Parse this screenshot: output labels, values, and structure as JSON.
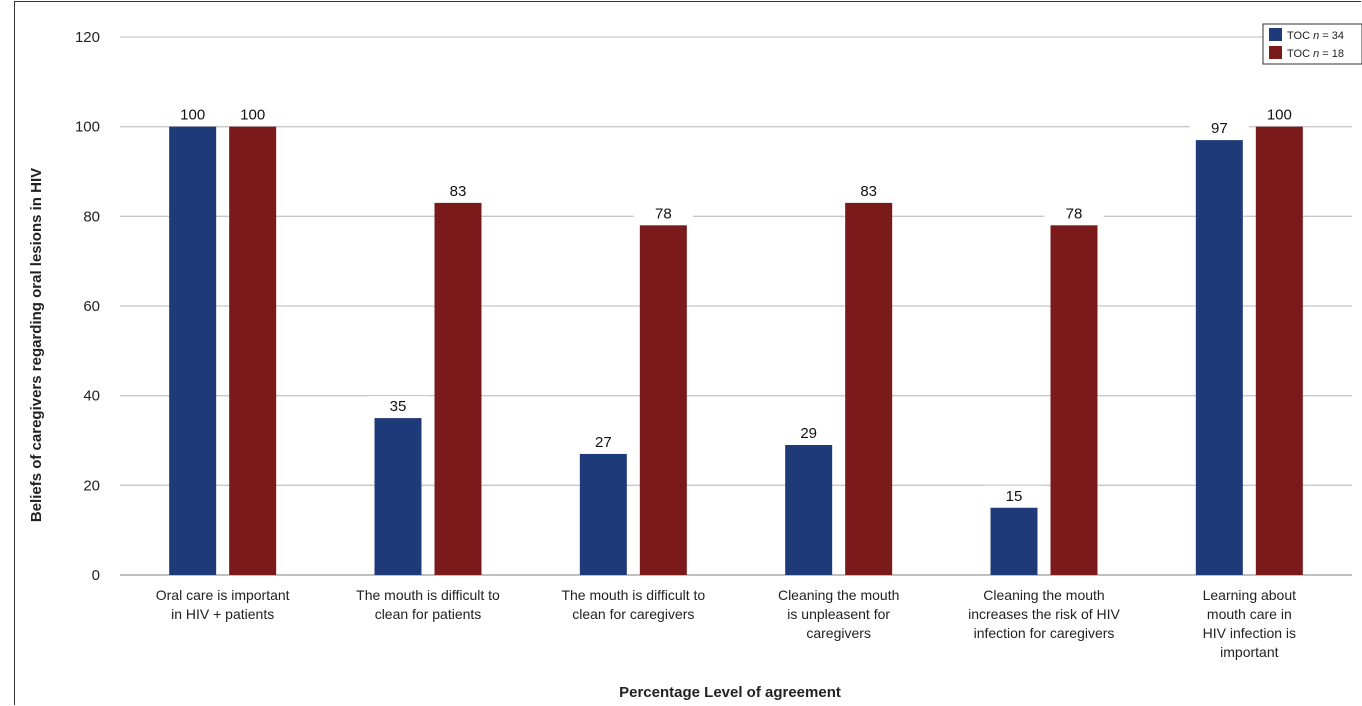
{
  "chart_data": {
    "type": "bar",
    "categories": [
      [
        "Oral care is important",
        "in HIV + patients"
      ],
      [
        "The mouth is difficult to",
        "clean for patients"
      ],
      [
        "The mouth is difficult to",
        "clean for caregivers"
      ],
      [
        "Cleaning the mouth",
        "is unpleasent for",
        "caregivers"
      ],
      [
        "Cleaning the mouth",
        "increases the risk of HIV",
        "infection for caregivers"
      ],
      [
        "Learning about",
        "mouth care in",
        "HIV infection is",
        "important"
      ]
    ],
    "series": [
      {
        "name": "TOC n = 34",
        "name_parts": [
          "TOC ",
          "n",
          " = 34"
        ],
        "color": "#1f3a78",
        "values": [
          100,
          35,
          27,
          29,
          15,
          97
        ]
      },
      {
        "name": "TOC n = 18",
        "name_parts": [
          "TOC ",
          "n",
          " = 18"
        ],
        "color": "#7b1a1a",
        "values": [
          100,
          83,
          78,
          83,
          78,
          100
        ]
      }
    ],
    "xlabel": "Percentage Level of agreement",
    "ylabel": "Beliefs of caregivers regarding oral lesions in HIV",
    "ylim": [
      0,
      120
    ],
    "yticks": [
      0,
      20,
      40,
      60,
      80,
      100,
      120
    ],
    "grid": true,
    "legend_position": "top-right"
  }
}
